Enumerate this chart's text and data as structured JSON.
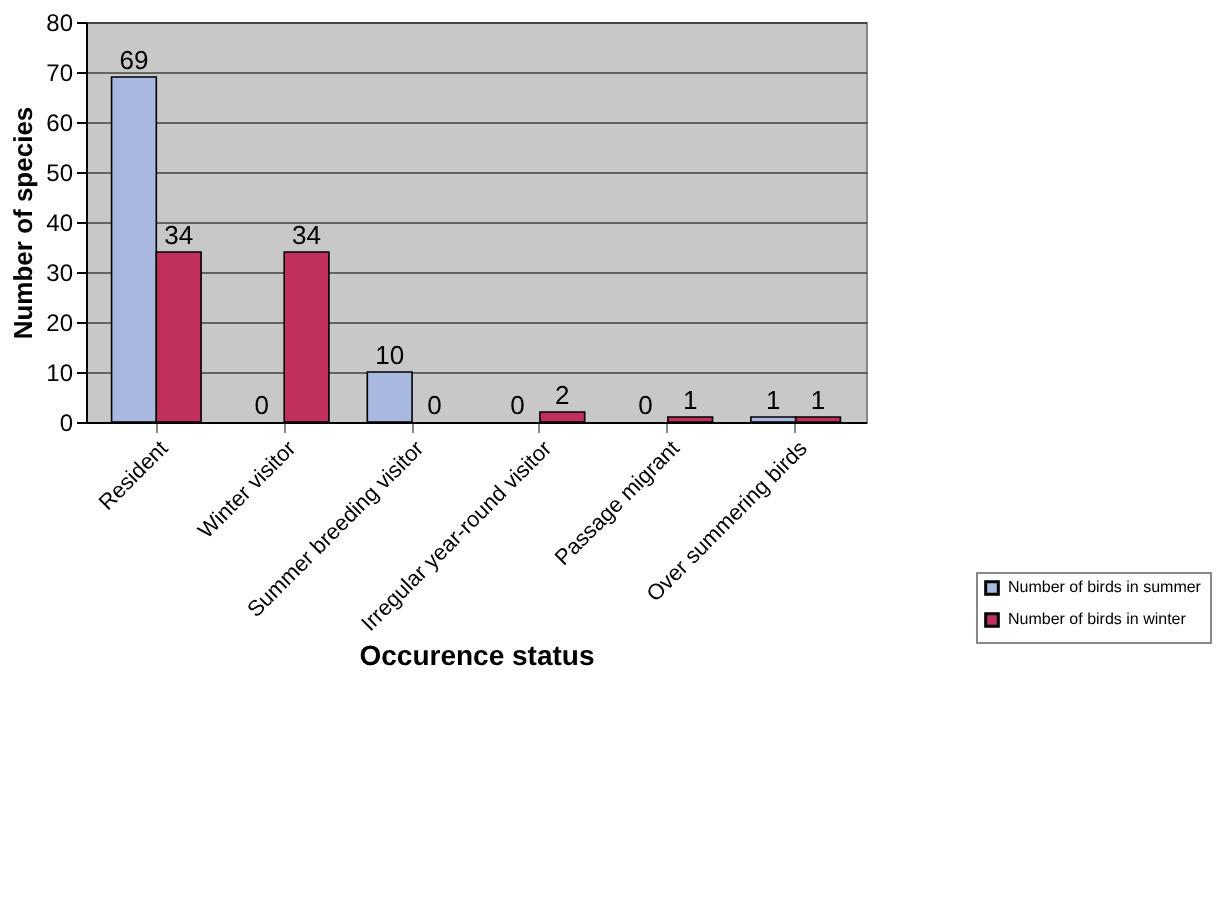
{
  "chart_data": {
    "type": "bar",
    "xlabel": "Occurence status",
    "ylabel": "Number of species",
    "categories": [
      "Resident",
      "Winter visitor",
      "Summer breeding visitor",
      "Irregular year-round visitor",
      "Passage migrant",
      "Over summering birds"
    ],
    "series": [
      {
        "name": "Number of birds in summer",
        "color": "#a8b8e0",
        "values": [
          69,
          0,
          10,
          0,
          0,
          1
        ]
      },
      {
        "name": "Number of birds in winter",
        "color": "#c0305a",
        "values": [
          34,
          34,
          0,
          2,
          1,
          1
        ]
      }
    ],
    "ylim": [
      0,
      80
    ],
    "yticks": [
      0,
      10,
      20,
      30,
      40,
      50,
      60,
      70,
      80
    ],
    "grid": "y",
    "legend": "bottom right",
    "data_labels": true
  }
}
